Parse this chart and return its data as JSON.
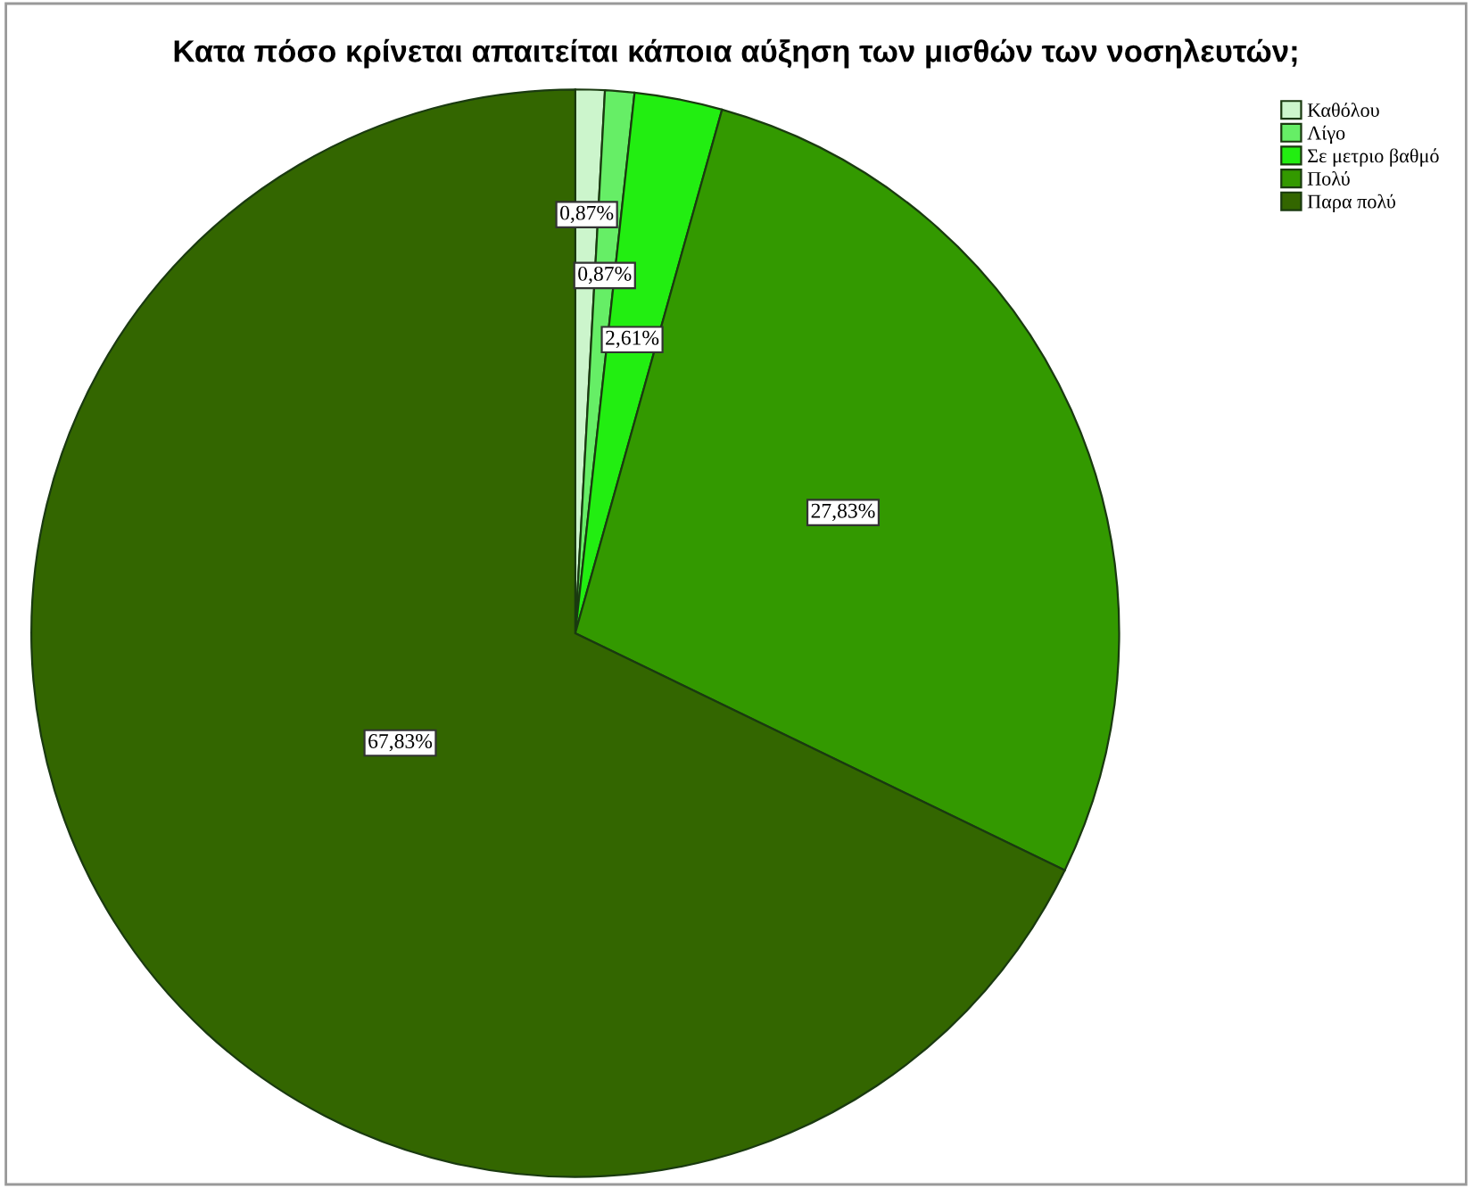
{
  "chart_data": {
    "type": "pie",
    "title": "Κατα πόσο κρίνεται απαιτείται κάποια αύξηση των μισθών των νοσηλευτών;",
    "categories": [
      "Καθόλου",
      "Λίγο",
      "Σε μετριο βαθμό",
      "Πολύ",
      "Παρα πολύ"
    ],
    "values": [
      0.87,
      0.87,
      2.61,
      27.83,
      67.83
    ],
    "value_labels": [
      "0,87%",
      "0,87%",
      "2,61%",
      "27,83%",
      "67,83%"
    ],
    "colors": [
      "#ccf5cc",
      "#66ee66",
      "#22ee11",
      "#339900",
      "#336600"
    ],
    "legend": "top right"
  }
}
